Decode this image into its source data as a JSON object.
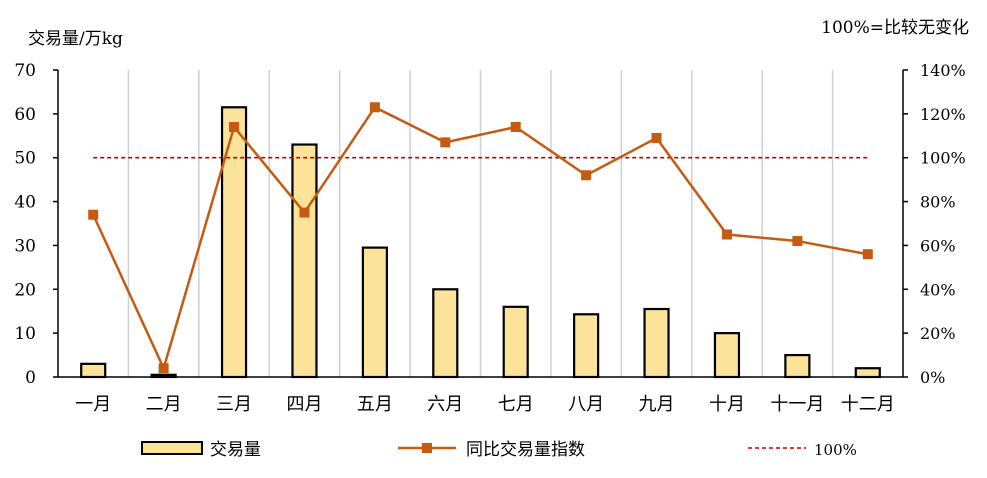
{
  "chart_data": {
    "type": "bar",
    "ylabel_left": "交易量/万kg",
    "note_right": "100%=比较无变化",
    "categories": [
      "一月",
      "二月",
      "三月",
      "四月",
      "五月",
      "六月",
      "七月",
      "八月",
      "九月",
      "十月",
      "十一月",
      "十二月"
    ],
    "left_axis": {
      "ylim": [
        0,
        70
      ],
      "ticks": [
        "0",
        "10",
        "20",
        "30",
        "40",
        "50",
        "60",
        "70"
      ]
    },
    "right_axis": {
      "ylim": [
        0,
        140
      ],
      "ticks": [
        "0%",
        "20%",
        "40%",
        "60%",
        "80%",
        "100%",
        "120%",
        "140%"
      ]
    },
    "grid": "vertical",
    "legend_position": "bottom",
    "series": [
      {
        "name": "交易量",
        "kind": "bar",
        "axis": "left",
        "color": "#FBE39A",
        "values": [
          3.0,
          0.5,
          61.5,
          53.0,
          29.5,
          20.0,
          16.0,
          14.3,
          15.5,
          10.0,
          5.0,
          2.0
        ]
      },
      {
        "name": "同比交易量指数",
        "kind": "line",
        "axis": "right",
        "color": "#C55A11",
        "values": [
          74,
          4,
          114,
          75,
          123,
          107,
          114,
          92,
          109,
          65,
          62,
          56
        ]
      },
      {
        "name": "100%",
        "kind": "reference",
        "axis": "right",
        "color": "#C00000",
        "values": [
          100,
          100,
          100,
          100,
          100,
          100,
          100,
          100,
          100,
          100,
          100,
          100
        ]
      }
    ]
  }
}
